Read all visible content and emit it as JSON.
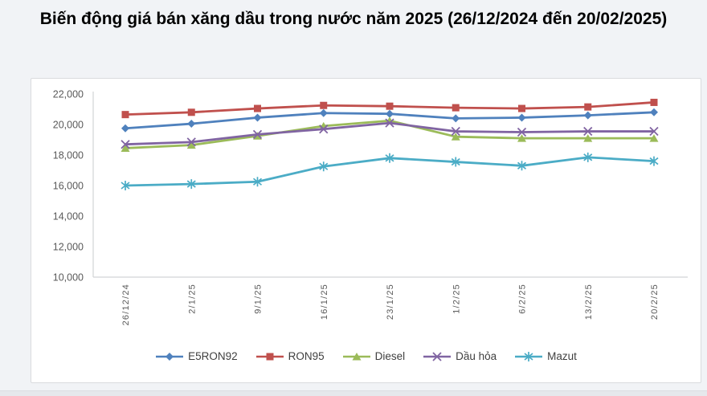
{
  "title": "Biến động giá bán xăng dầu trong nước năm 2025 (26/12/2024 đến 20/02/2025)",
  "colors": {
    "page_background": "#f1f3f6",
    "panel_background": "#ffffff",
    "panel_border": "#d9dbde",
    "axis_line": "#d2d4d6",
    "tick_label": "#595959",
    "legend_label": "#3f3f3f",
    "title_text": "#000000"
  },
  "chart_data": {
    "type": "line",
    "title": "Biến động giá bán xăng dầu trong nước năm 2025 (26/12/2024 đến 20/02/2025)",
    "xlabel": "",
    "ylabel": "",
    "ylim": [
      10000,
      22000
    ],
    "ytick_step": 2000,
    "ytick_labels": [
      "10,000",
      "12,000",
      "14,000",
      "16,000",
      "18,000",
      "20,000",
      "22,000"
    ],
    "grid": false,
    "legend_position": "bottom",
    "x_tick_rotation_deg": 90,
    "categories": [
      "26/12/24",
      "2/1/25",
      "9/1/25",
      "16/1/25",
      "23/1/25",
      "1/2/25",
      "6/2/25",
      "13/2/25",
      "20/2/25"
    ],
    "series": [
      {
        "name": "E5RON92",
        "color": "#4F81BD",
        "marker": "diamond",
        "values": [
          19750,
          20050,
          20450,
          20750,
          20700,
          20400,
          20450,
          20600,
          20800
        ]
      },
      {
        "name": "RON95",
        "color": "#C0504D",
        "marker": "square",
        "values": [
          20650,
          20800,
          21050,
          21250,
          21200,
          21100,
          21050,
          21150,
          21450
        ]
      },
      {
        "name": "Diesel",
        "color": "#9BBB59",
        "marker": "triangle",
        "values": [
          18450,
          18650,
          19250,
          19900,
          20250,
          19200,
          19100,
          19100,
          19100
        ]
      },
      {
        "name": "Dầu hỏa",
        "color": "#8064A2",
        "marker": "x",
        "values": [
          18700,
          18850,
          19350,
          19700,
          20100,
          19550,
          19500,
          19550,
          19550
        ]
      },
      {
        "name": "Mazut",
        "color": "#4BACC6",
        "marker": "asterisk",
        "values": [
          16000,
          16100,
          16250,
          17250,
          17800,
          17550,
          17300,
          17850,
          17600
        ]
      }
    ]
  }
}
